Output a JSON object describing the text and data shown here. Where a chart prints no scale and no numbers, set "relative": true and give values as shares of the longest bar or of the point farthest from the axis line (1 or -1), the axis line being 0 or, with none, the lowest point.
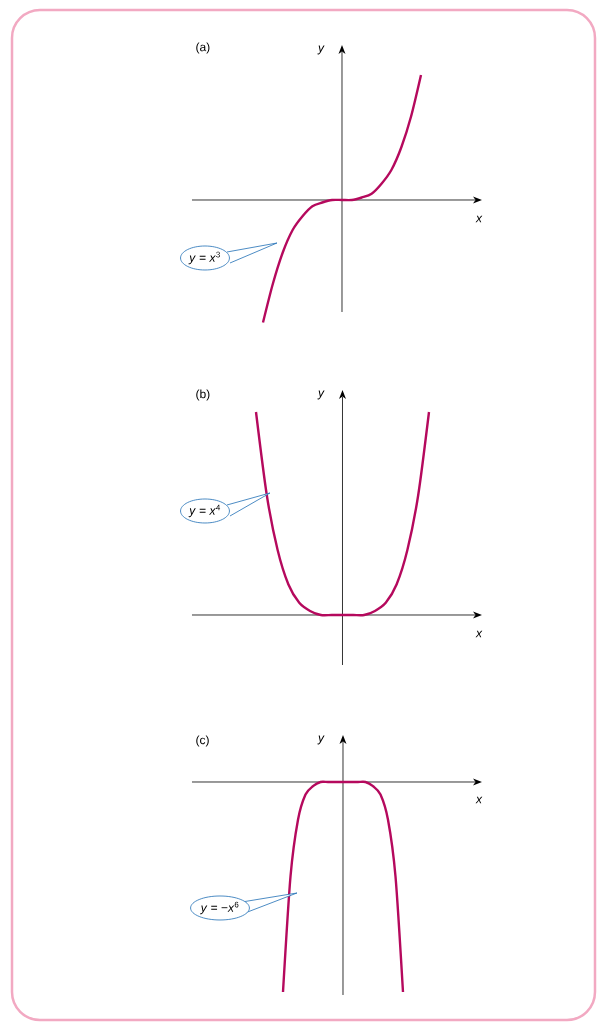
{
  "chart_data": [
    {
      "type": "line",
      "title": "(a)",
      "xlabel": "x",
      "ylabel": "y",
      "relative": true,
      "color": "#b5095d",
      "categories": [
        null,
        null,
        null,
        null,
        null,
        null,
        null,
        null,
        null,
        null,
        null,
        null,
        null,
        null,
        null,
        null,
        null
      ],
      "values": [
        -0.98,
        -0.67,
        -0.42,
        -0.24,
        -0.13,
        -0.05,
        -0.02,
        0,
        0,
        0,
        0.02,
        0.05,
        0.13,
        0.24,
        0.42,
        0.67,
        1
      ],
      "annotations": [
        "*y* = *x*$^{3}$"
      ]
    },
    {
      "type": "line",
      "title": "(b)",
      "xlabel": "x",
      "ylabel": "y",
      "relative": true,
      "color": "#b5095d",
      "categories": [
        null,
        null,
        null,
        null,
        null,
        null,
        null,
        null,
        null,
        null,
        null,
        null,
        null,
        null,
        null,
        null,
        null
      ],
      "values": [
        1,
        0.59,
        0.32,
        0.15,
        0.06,
        0.02,
        0,
        0,
        0,
        0,
        0,
        0.02,
        0.06,
        0.15,
        0.32,
        0.59,
        1
      ],
      "annotations": [
        "*y* = *x*$^{4}$"
      ]
    },
    {
      "type": "line",
      "title": "(c)",
      "xlabel": "x",
      "ylabel": "y",
      "relative": true,
      "color": "#b5095d",
      "categories": [
        null,
        null,
        null,
        null,
        null,
        null,
        null,
        null,
        null,
        null,
        null,
        null,
        null,
        null,
        null,
        null,
        null
      ],
      "values": [
        -1,
        -0.45,
        -0.18,
        -0.06,
        -0.02,
        0,
        0,
        0,
        0,
        0,
        0,
        0,
        -0.02,
        -0.06,
        -0.18,
        -0.45,
        -1
      ],
      "annotations": [
        "*y* = −*x*$^{6}$"
      ]
    }
  ]
}
